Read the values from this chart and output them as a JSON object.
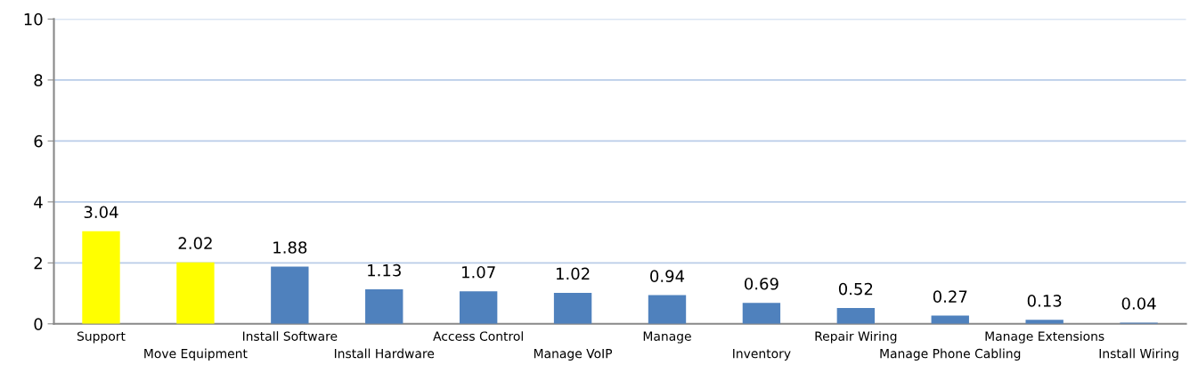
{
  "chart_data": {
    "type": "bar",
    "categories": [
      "Support",
      "Move Equipment",
      "Install Software",
      "Install Hardware",
      "Access Control",
      "Manage VoIP",
      "Manage",
      "Inventory",
      "Repair Wiring",
      "Manage Phone Cabling",
      "Manage Extensions",
      "Install Wiring"
    ],
    "values": [
      3.04,
      2.02,
      1.88,
      1.13,
      1.07,
      1.02,
      0.94,
      0.69,
      0.52,
      0.27,
      0.13,
      0.04
    ],
    "colors": [
      "#ffff00",
      "#ffff00",
      "#4f81bd",
      "#4f81bd",
      "#4f81bd",
      "#4f81bd",
      "#4f81bd",
      "#4f81bd",
      "#4f81bd",
      "#4f81bd",
      "#4f81bd",
      "#4f81bd"
    ],
    "ylim": [
      0,
      10
    ],
    "yticks": [
      0,
      2,
      4,
      6,
      8,
      10
    ],
    "grid": "y",
    "data_labels": true
  }
}
